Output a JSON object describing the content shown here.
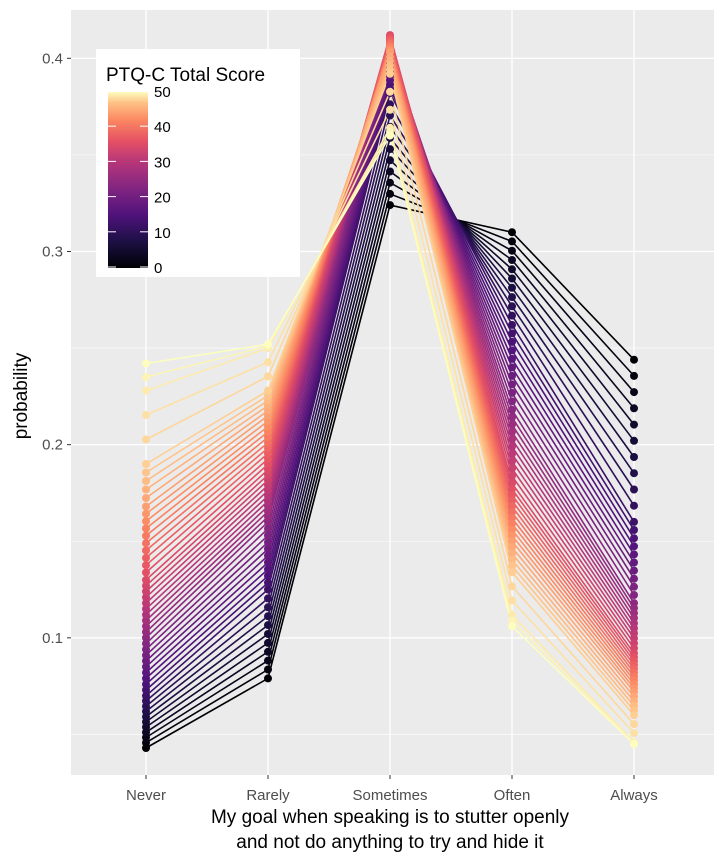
{
  "chart_data": {
    "type": "line",
    "title": "",
    "xlabel_line1": "My goal when speaking is to stutter openly",
    "xlabel_line2": "and not do anything to try and hide it",
    "ylabel": "probability",
    "categories": [
      "Never",
      "Rarely",
      "Sometimes",
      "Often",
      "Always"
    ],
    "yticks": [
      "0.1",
      "0.2",
      "0.3",
      "0.4"
    ],
    "ylim": [
      0.029,
      0.425
    ],
    "grid": true,
    "legend": {
      "title": "PTQ-C Total Score",
      "position": "top-left",
      "range": [
        0,
        50
      ],
      "labels": [
        "50",
        "40",
        "30",
        "20",
        "10",
        "0"
      ]
    },
    "series_note": "One line per PTQ-C Total Score value (0-50); colour = score (magma-like scale).",
    "anchor_series": [
      {
        "score": 0,
        "values": [
          0.043,
          0.079,
          0.324,
          0.31,
          0.244
        ]
      },
      {
        "score": 10,
        "values": [
          0.07,
          0.125,
          0.382,
          0.262,
          0.16
        ]
      },
      {
        "score": 20,
        "values": [
          0.1,
          0.16,
          0.404,
          0.218,
          0.118
        ]
      },
      {
        "score": 30,
        "values": [
          0.13,
          0.187,
          0.412,
          0.18,
          0.092
        ]
      },
      {
        "score": 40,
        "values": [
          0.168,
          0.215,
          0.403,
          0.15,
          0.072
        ]
      },
      {
        "score": 45,
        "values": [
          0.19,
          0.228,
          0.392,
          0.134,
          0.06
        ]
      },
      {
        "score": 48,
        "values": [
          0.228,
          0.25,
          0.364,
          0.112,
          0.046
        ]
      },
      {
        "score": 50,
        "values": [
          0.242,
          0.252,
          0.36,
          0.106,
          0.045
        ]
      }
    ],
    "colors": {
      "panel": "#ebebeb",
      "grid_major": "#ffffff",
      "scale": [
        "#000004",
        "#1c1044",
        "#4f127b",
        "#812581",
        "#b5367a",
        "#e55064",
        "#fb8761",
        "#fec287",
        "#fcfdbf"
      ]
    }
  }
}
